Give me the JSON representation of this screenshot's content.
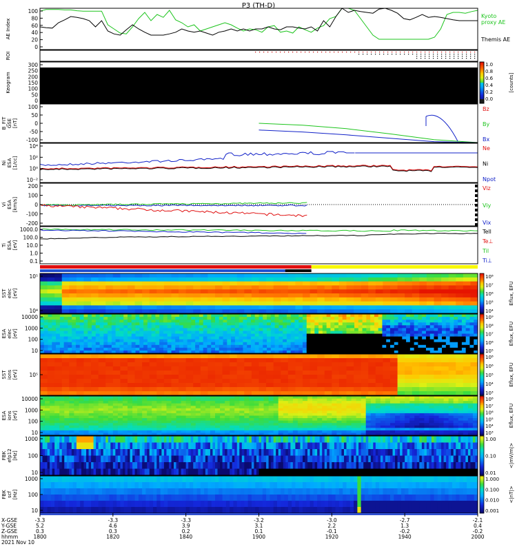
{
  "chart_data": {
    "type": "line",
    "title": "P3 (TH-D)",
    "colors": {
      "green": "#1cc41c",
      "red": "#e01010",
      "blue": "#1020c8",
      "black": "#000000",
      "yellow": "#f8f800"
    },
    "panels": [
      {
        "id": "ae",
        "ylabel": [
          "AE Index"
        ],
        "yticks": [
          "100",
          "80",
          "60",
          "40",
          "20",
          "0"
        ],
        "legend": [
          {
            "text": "Kyoto",
            "color": "#1cc41c"
          },
          {
            "text": "proxy AE",
            "color": "#1cc41c"
          },
          {
            "text": "Themis AE",
            "color": "#000000"
          }
        ],
        "ylim": [
          0,
          100
        ],
        "series": [
          {
            "name": "Kyoto proxy AE",
            "color": "#1cc41c",
            "values": [
              93,
              97,
              97,
              97,
              96,
              96,
              94,
              93,
              93,
              93,
              93,
              60,
              50,
              40,
              38,
              55,
              75,
              90,
              70,
              85,
              78,
              95,
              72,
              65,
              55,
              60,
              45,
              50,
              55,
              60,
              65,
              60,
              52,
              45,
              50,
              48,
              42,
              55,
              58,
              42,
              45,
              40,
              55,
              48,
              42,
              52,
              58,
              75,
              80,
              100,
              100,
              95,
              75,
              55,
              35,
              25,
              25,
              25,
              25,
              25,
              25,
              25,
              25,
              25,
              30,
              50,
              85,
              90,
              90,
              88,
              92,
              95
            ]
          },
          {
            "name": "Themis AE",
            "color": "#000000",
            "values": [
              55,
              53,
              52,
              65,
              72,
              80,
              78,
              75,
              70,
              55,
              70,
              45,
              38,
              35,
              48,
              60,
              50,
              42,
              35,
              35,
              35,
              38,
              42,
              50,
              45,
              42,
              45,
              40,
              35,
              42,
              45,
              50,
              45,
              50,
              45,
              50,
              50,
              55,
              50,
              48,
              55,
              55,
              52,
              50,
              55,
              45,
              70,
              55,
              80,
              100,
              90,
              95,
              92,
              90,
              88,
              98,
              100,
              95,
              88,
              75,
              72,
              78,
              85,
              78,
              80,
              78,
              75,
              72,
              70,
              70,
              70,
              70
            ]
          }
        ]
      },
      {
        "id": "roi",
        "ylabel": [
          "ROI"
        ]
      },
      {
        "id": "keogram",
        "ylabel": [
          "Keogram"
        ],
        "yticks": [
          "300",
          "250",
          "200",
          "150",
          "100",
          "50",
          "0"
        ],
        "colorbar": {
          "label": "[counts]",
          "ticks": [
            "1.0",
            "0.8",
            "0.6",
            "0.4",
            "0.2",
            "0.0"
          ]
        }
      },
      {
        "id": "bfit",
        "ylabel": [
          "B_FIT",
          "GSE",
          "[nT]"
        ],
        "yticks": [
          "100",
          "50",
          "0",
          "-50",
          "-100"
        ],
        "ylim": [
          -100,
          100
        ],
        "legend": [
          {
            "text": "Bz",
            "color": "#e01010"
          },
          {
            "text": "By",
            "color": "#1cc41c"
          },
          {
            "text": "Bx",
            "color": "#1020c8"
          }
        ],
        "series": [
          {
            "name": "By",
            "color": "#1cc41c",
            "x": [
              1900,
              1920,
              1940,
              1960,
              1980,
              2000
            ],
            "values": [
              0,
              -10,
              -28,
              -55,
              -85,
              -100
            ]
          },
          {
            "name": "Bx",
            "color": "#1020c8",
            "x": [
              1900,
              1920,
              1940,
              1960,
              1980,
              2000
            ],
            "values": [
              -35,
              -45,
              -60,
              -78,
              -95,
              -100
            ]
          }
        ]
      },
      {
        "id": "ni",
        "ylabel": [
          "Ni",
          "ESA",
          "[1/cc]"
        ],
        "yticks": [
          "10⁴",
          "10²",
          "10⁰",
          "10⁻²"
        ],
        "legend": [
          {
            "text": "Ne",
            "color": "#e01010"
          },
          {
            "text": "Ni",
            "color": "#000000"
          },
          {
            "text": "Npot",
            "color": "#1020c8"
          }
        ]
      },
      {
        "id": "vi",
        "ylabel": [
          "Vi",
          "ESA",
          "[km/s]"
        ],
        "yticks": [
          "200",
          "100",
          "0",
          "-100",
          "-200"
        ],
        "ylim": [
          -250,
          250
        ],
        "legend": [
          {
            "text": "Viz",
            "color": "#e01010"
          },
          {
            "text": "Viy",
            "color": "#1cc41c"
          },
          {
            "text": "Vix",
            "color": "#1020c8"
          }
        ]
      },
      {
        "id": "ti",
        "ylabel": [
          "Ti",
          "ESA",
          "[eV]"
        ],
        "yticks": [
          "1000.0",
          "100.0",
          "10.0",
          "1.0",
          "0.1"
        ],
        "legend": [
          {
            "text": "Tell",
            "color": "#000000"
          },
          {
            "text": "Te⊥",
            "color": "#e01010"
          },
          {
            "text": "Til",
            "color": "#1cc41c"
          },
          {
            "text": "Ti⊥",
            "color": "#1020c8"
          }
        ]
      },
      {
        "id": "sst_e",
        "ylabel": [
          "SST",
          "elec",
          "[eV]"
        ],
        "yticks": [
          "10⁵",
          "10⁴"
        ],
        "colorbar": {
          "label": "Eflux, EFU",
          "ticks": [
            "10⁸",
            "10⁷",
            "10⁶",
            "10⁵",
            "10⁴"
          ]
        }
      },
      {
        "id": "esa_e",
        "ylabel": [
          "ESA",
          "elec",
          "[eV]"
        ],
        "yticks": [
          "10000",
          "1000",
          "100",
          "10"
        ],
        "colorbar": {
          "label": "Eflux, EFU",
          "ticks": [
            "10⁹",
            "10⁸",
            "10⁷",
            "10⁶",
            "10⁵"
          ]
        }
      },
      {
        "id": "sst_i",
        "ylabel": [
          "SST",
          "ions",
          "[eV]"
        ],
        "yticks": [
          "10⁵"
        ],
        "colorbar": {
          "label": "Eflux, EFU",
          "ticks": [
            "10⁸",
            "10⁶",
            "10⁵",
            "10⁴",
            "10³"
          ]
        }
      },
      {
        "id": "esa_i",
        "ylabel": [
          "ESA",
          "ions",
          "[eV]"
        ],
        "yticks": [
          "10000",
          "1000",
          "100",
          "10"
        ],
        "colorbar": {
          "label": "Eflux, EFU",
          "ticks": [
            "10⁸",
            "10⁷",
            "10⁶",
            "10⁵",
            "10⁴",
            "10³"
          ]
        }
      },
      {
        "id": "fbk1",
        "ylabel": [
          "FBK",
          "efp12",
          "[Hz]"
        ],
        "yticks": [
          "1000",
          "100",
          "10"
        ],
        "colorbar": {
          "label": "<|mV/m|>",
          "ticks": [
            "1.00",
            "0.10",
            "0.01"
          ]
        }
      },
      {
        "id": "fbk2",
        "ylabel": [
          "FBK",
          "scf",
          "[Hz]"
        ],
        "yticks": [
          "1000",
          "100",
          "10"
        ],
        "colorbar": {
          "label": "<|nT|>",
          "ticks": [
            "1.000",
            "0.100",
            "0.010",
            "0.001"
          ]
        }
      }
    ],
    "xaxis": {
      "row_labels": [
        "X-GSE",
        "Y-GSE",
        "Z-GSE",
        "hhmm",
        "2021 Nov 10"
      ],
      "ticks": [
        {
          "x": "-3.3",
          "y": "5.2",
          "z": "0.3",
          "t": "1800"
        },
        {
          "x": "-3.3",
          "y": "4.6",
          "z": "0.3",
          "t": "1820"
        },
        {
          "x": "-3.3",
          "y": "3.9",
          "z": "0.2",
          "t": "1840"
        },
        {
          "x": "-3.2",
          "y": "3.1",
          "z": "0.1",
          "t": "1900"
        },
        {
          "x": "-3.0",
          "y": "2.2",
          "z": "-0.1",
          "t": "1920"
        },
        {
          "x": "-2.7",
          "y": "1.3",
          "z": "-0.2",
          "t": "1940"
        },
        {
          "x": "-2.1",
          "y": "0.4",
          "z": "-0.2",
          "t": "2000"
        }
      ]
    }
  }
}
